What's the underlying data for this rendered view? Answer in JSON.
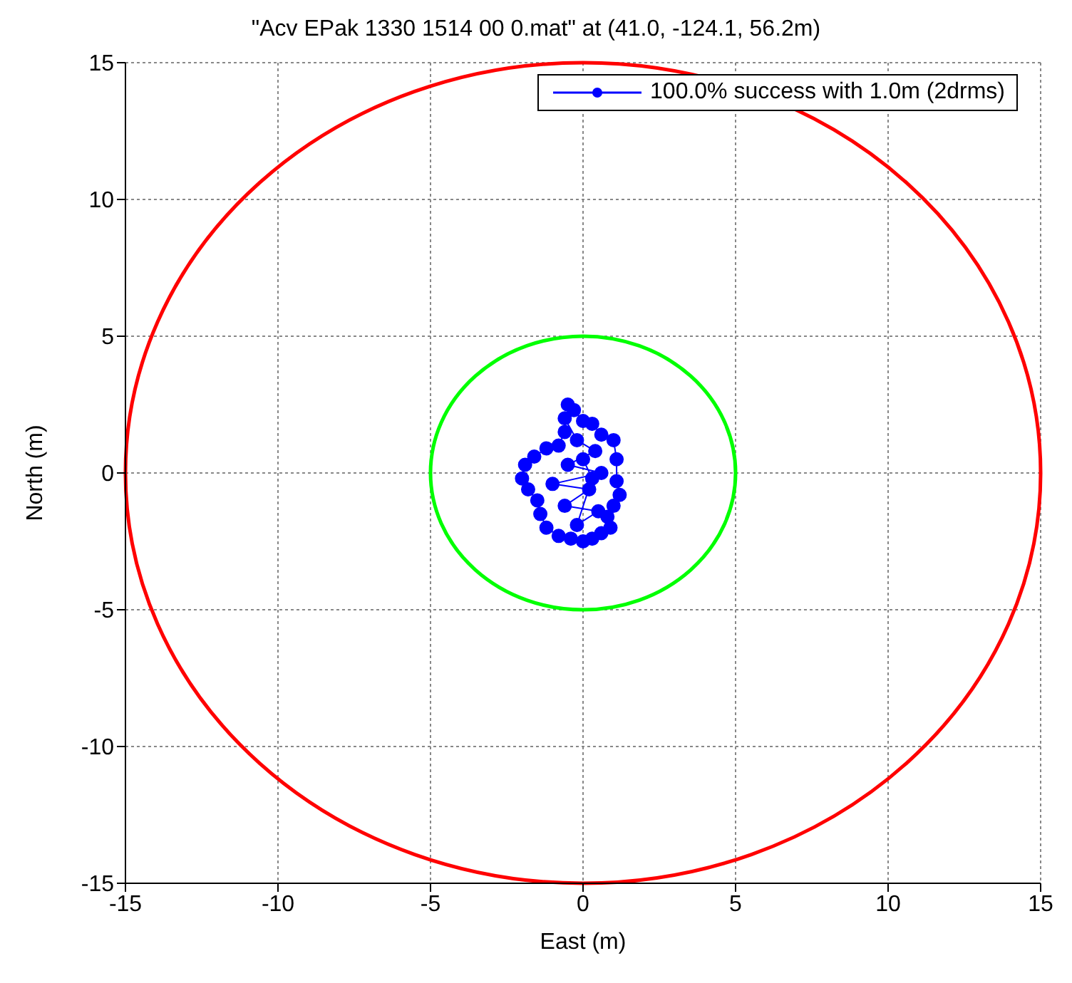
{
  "chart_data": {
    "type": "line",
    "title": "\"Acv EPak 1330 1514 00 0.mat\" at (41.0, -124.1, 56.2m)",
    "xlabel": "East (m)",
    "ylabel": "North (m)",
    "xlim": [
      -15,
      15
    ],
    "xticks": [
      -15,
      -10,
      -5,
      0,
      5,
      10,
      15
    ],
    "ylim": [
      -15,
      15
    ],
    "yticks": [
      -15,
      -10,
      -5,
      0,
      5,
      10,
      15
    ],
    "grid": true,
    "legend": "top right",
    "series": [
      {
        "name": "100.0% success with 1.0m (2drms)",
        "color": "#0000ff",
        "marker": "circle",
        "x": [
          -0.5,
          -0.3,
          0,
          0.3,
          0.6,
          1.0,
          1.1,
          1.1,
          1.2,
          1.0,
          0.8,
          0.9,
          0.6,
          0.3,
          0,
          -0.4,
          -0.8,
          -1.2,
          -1.4,
          -1.5,
          -1.8,
          -2.0,
          -1.9,
          -1.6,
          -1.2,
          -0.8,
          -0.6,
          -0.6,
          -0.2,
          0.4,
          -0.5,
          0.6,
          -1.0,
          0.2,
          -0.6,
          0.5,
          -0.2,
          0.3,
          0
        ],
        "values": [
          2.5,
          2.3,
          1.9,
          1.8,
          1.4,
          1.2,
          0.5,
          -0.3,
          -0.8,
          -1.2,
          -1.6,
          -2.0,
          -2.2,
          -2.4,
          -2.5,
          -2.4,
          -2.3,
          -2.0,
          -1.5,
          -1.0,
          -0.6,
          -0.2,
          0.3,
          0.6,
          0.9,
          1.0,
          1.5,
          2.0,
          1.2,
          0.8,
          0.3,
          0,
          -0.4,
          -0.6,
          -1.2,
          -1.4,
          -1.9,
          -0.2,
          0.5
        ]
      }
    ]
  }
}
